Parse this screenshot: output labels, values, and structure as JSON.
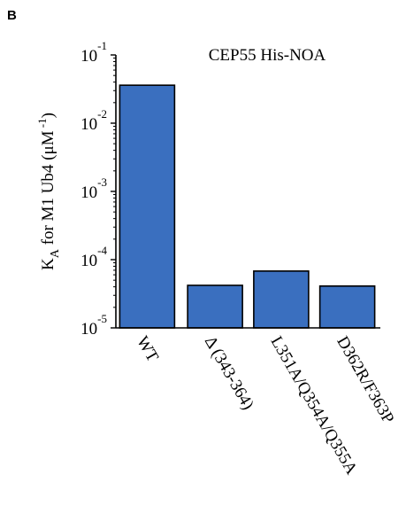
{
  "panel_label": "B",
  "chart_data": {
    "type": "bar",
    "log_scale": true,
    "title": "CEP55 His-NOA",
    "ylabel": {
      "main": "K",
      "subscript": "A",
      "rest": " for M1 Ub4 (μM",
      "superscript": " -1",
      "close": ")"
    },
    "ylim": [
      1e-05,
      0.1
    ],
    "yticks": [
      {
        "value": 1e-05,
        "base": "10",
        "exp": "-5"
      },
      {
        "value": 0.0001,
        "base": "10",
        "exp": "-4"
      },
      {
        "value": 0.001,
        "base": "10",
        "exp": "-3"
      },
      {
        "value": 0.01,
        "base": "10",
        "exp": "-2"
      },
      {
        "value": 0.1,
        "base": "10",
        "exp": "-1"
      }
    ],
    "categories": [
      "WT",
      "Δ (343-364)",
      "L351A/Q354A/Q355A",
      "D362R/F363P"
    ],
    "values": [
      0.036,
      4.2e-05,
      6.8e-05,
      4.1e-05
    ],
    "bar_color": "#3a6fbf",
    "bar_edge_color": "#000000",
    "grid": false,
    "legend": "none"
  }
}
